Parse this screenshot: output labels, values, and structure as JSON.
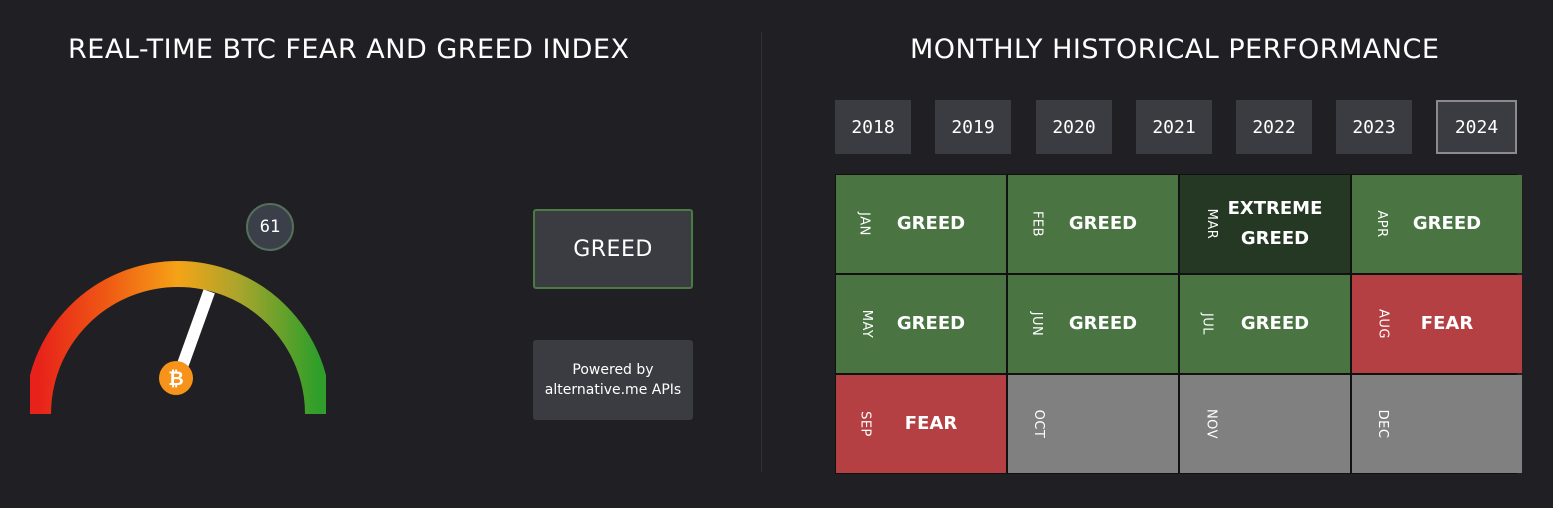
{
  "left": {
    "title": "REAL-TIME BTC FEAR AND GREED INDEX",
    "gauge_value": 61,
    "value_text": "61",
    "status": "GREED",
    "powered_line1": "Powered by",
    "powered_line2": "alternative.me APIs",
    "coin_icon": "bitcoin-icon",
    "colors": {
      "fear": "#e8221a",
      "neutral": "#f5a317",
      "greed": "#2f9e2a",
      "coin": "#f7931a"
    }
  },
  "right": {
    "title": "MONTHLY HISTORICAL PERFORMANCE",
    "years": [
      "2018",
      "2019",
      "2020",
      "2021",
      "2022",
      "2023",
      "2024"
    ],
    "selected_year": "2024",
    "months": [
      {
        "month": "JAN",
        "sentiment": "GREED",
        "color": "#4a7543"
      },
      {
        "month": "FEB",
        "sentiment": "GREED",
        "color": "#4a7543"
      },
      {
        "month": "MAR",
        "sentiment": "EXTREME GREED",
        "color": "#243823"
      },
      {
        "month": "APR",
        "sentiment": "GREED",
        "color": "#4a7543"
      },
      {
        "month": "MAY",
        "sentiment": "GREED",
        "color": "#4a7543"
      },
      {
        "month": "JUN",
        "sentiment": "GREED",
        "color": "#4a7543"
      },
      {
        "month": "JUL",
        "sentiment": "GREED",
        "color": "#4a7543"
      },
      {
        "month": "AUG",
        "sentiment": "FEAR",
        "color": "#b54043"
      },
      {
        "month": "SEP",
        "sentiment": "FEAR",
        "color": "#b54043"
      },
      {
        "month": "OCT",
        "sentiment": "",
        "color": "#808080"
      },
      {
        "month": "NOV",
        "sentiment": "",
        "color": "#808080"
      },
      {
        "month": "DEC",
        "sentiment": "",
        "color": "#808080"
      }
    ]
  }
}
